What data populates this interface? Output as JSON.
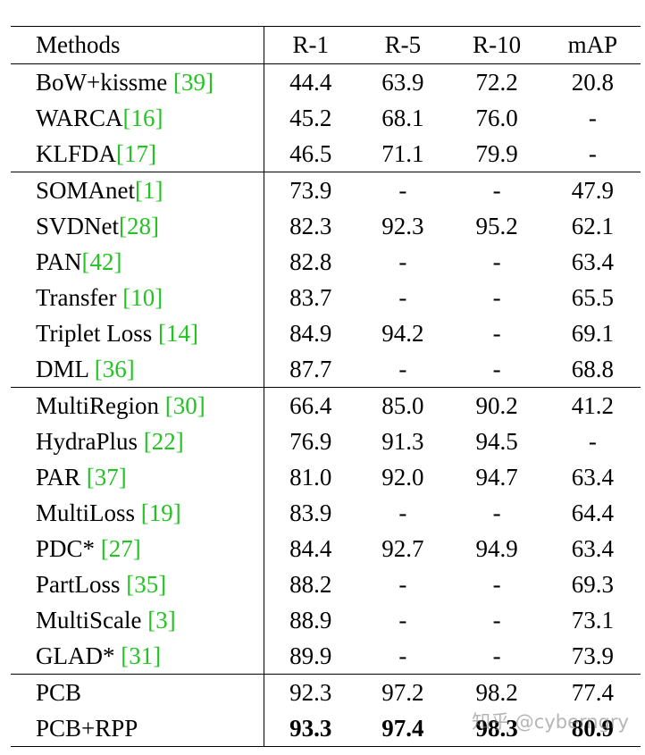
{
  "columns": [
    "Methods",
    "R-1",
    "R-5",
    "R-10",
    "mAP"
  ],
  "groups": [
    [
      {
        "name": "BoW+kissme ",
        "ref": "39",
        "r1": "44.4",
        "r5": "63.9",
        "r10": "72.2",
        "map": "20.8"
      },
      {
        "name": "WARCA",
        "ref": "16",
        "r1": "45.2",
        "r5": "68.1",
        "r10": "76.0",
        "map": "-"
      },
      {
        "name": "KLFDA",
        "ref": "17",
        "r1": "46.5",
        "r5": "71.1",
        "r10": "79.9",
        "map": "-"
      }
    ],
    [
      {
        "name": "SOMAnet",
        "ref": "1",
        "r1": "73.9",
        "r5": "-",
        "r10": "-",
        "map": "47.9"
      },
      {
        "name": "SVDNet",
        "ref": "28",
        "r1": "82.3",
        "r5": "92.3",
        "r10": "95.2",
        "map": "62.1"
      },
      {
        "name": "PAN",
        "ref": "42",
        "r1": "82.8",
        "r5": "-",
        "r10": "-",
        "map": "63.4"
      },
      {
        "name": "Transfer ",
        "ref": "10",
        "r1": "83.7",
        "r5": "-",
        "r10": "-",
        "map": "65.5"
      },
      {
        "name": "Triplet Loss ",
        "ref": "14",
        "r1": "84.9",
        "r5": "94.2",
        "r10": "-",
        "map": "69.1"
      },
      {
        "name": "DML ",
        "ref": "36",
        "r1": "87.7",
        "r5": "-",
        "r10": "-",
        "map": "68.8"
      }
    ],
    [
      {
        "name": "MultiRegion ",
        "ref": "30",
        "r1": "66.4",
        "r5": "85.0",
        "r10": "90.2",
        "map": "41.2"
      },
      {
        "name": "HydraPlus ",
        "ref": "22",
        "r1": "76.9",
        "r5": "91.3",
        "r10": "94.5",
        "map": "-"
      },
      {
        "name": "PAR ",
        "ref": "37",
        "r1": "81.0",
        "r5": "92.0",
        "r10": "94.7",
        "map": "63.4"
      },
      {
        "name": "MultiLoss ",
        "ref": "19",
        "r1": "83.9",
        "r5": "-",
        "r10": "-",
        "map": "64.4"
      },
      {
        "name": "PDC* ",
        "ref": "27",
        "r1": "84.4",
        "r5": "92.7",
        "r10": "94.9",
        "map": "63.4"
      },
      {
        "name": "PartLoss ",
        "ref": "35",
        "r1": "88.2",
        "r5": "-",
        "r10": "-",
        "map": "69.3"
      },
      {
        "name": "MultiScale ",
        "ref": "3",
        "r1": "88.9",
        "r5": "-",
        "r10": "-",
        "map": "73.1"
      },
      {
        "name": "GLAD* ",
        "ref": "31",
        "r1": "89.9",
        "r5": "-",
        "r10": "-",
        "map": "73.9"
      }
    ],
    [
      {
        "name": "PCB",
        "ref": "",
        "r1": "92.3",
        "r5": "97.2",
        "r10": "98.2",
        "map": "77.4"
      },
      {
        "name": "PCB+RPP",
        "ref": "",
        "r1": "93.3",
        "r5": "97.4",
        "r10": "98.3",
        "map": "80.9",
        "bold": true
      }
    ]
  ],
  "watermark": "知乎 @cyberngry"
}
